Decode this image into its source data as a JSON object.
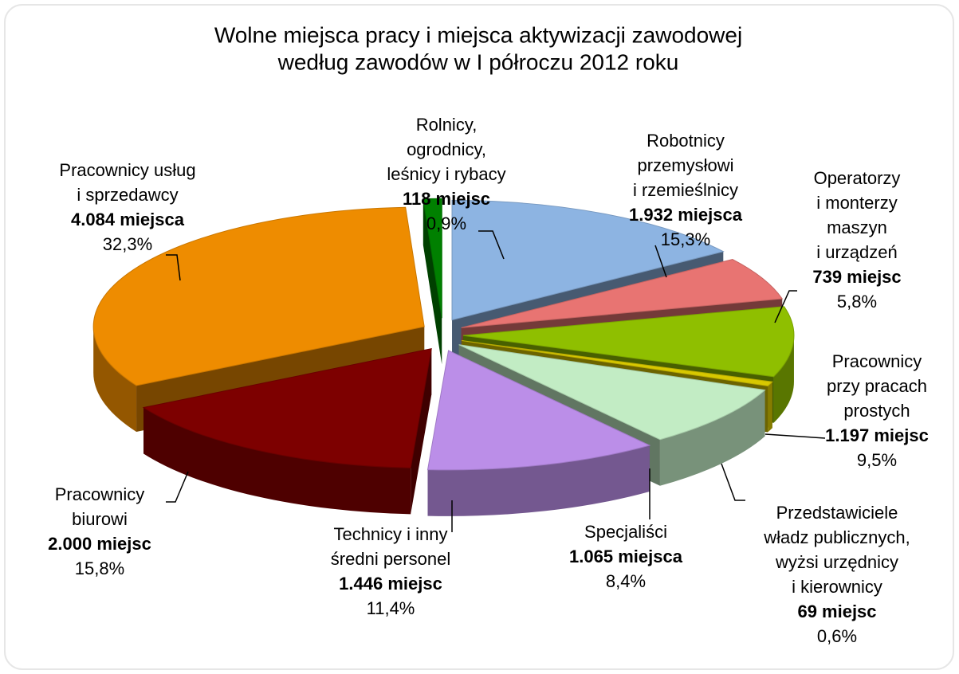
{
  "chart_data": {
    "type": "pie3d",
    "title": [
      "Wolne miejsca pracy i miejsca aktywizacji zawodowej",
      "według zawodów w I półroczu 2012 roku"
    ],
    "categories": [
      [
        "Robotnicy",
        "przemysłowi",
        "i rzemieślnicy"
      ],
      [
        "Operatorzy",
        "i monterzy",
        "maszyn",
        "i urządzeń"
      ],
      [
        "Pracownicy",
        "przy pracach",
        "prostych"
      ],
      [
        "Przedstawiciele",
        "władz publicznych,",
        "wyżsi urzędnicy",
        "i kierownicy"
      ],
      [
        "Specjaliści"
      ],
      [
        "Technicy i inny",
        "średni personel"
      ],
      [
        "Pracownicy",
        "biurowi"
      ],
      [
        "Pracownicy usług",
        "i sprzedawcy"
      ],
      [
        "Rolnicy,",
        "ogrodnicy,",
        "leśnicy i rybacy"
      ]
    ],
    "values": [
      15.3,
      5.8,
      9.5,
      0.6,
      8.4,
      11.4,
      15.8,
      32.3,
      0.9
    ],
    "value_labels": [
      "15,3%",
      "5,8%",
      "9,5%",
      "0,6%",
      "8,4%",
      "11,4%",
      "15,8%",
      "32,3%",
      "0,9%"
    ],
    "counts": [
      1932,
      739,
      1197,
      69,
      1065,
      1446,
      2000,
      4084,
      118
    ],
    "count_labels": [
      "1.932 miejsca",
      "739 miejsc",
      "1.197 miejsc",
      "69 miejsc",
      "1.065 miejsca",
      "1.446 miejsc",
      "2.000 miejsc",
      "4.084 miejsca",
      "118 miejsc"
    ],
    "colors": [
      "#8db4e2",
      "#e87472",
      "#8fbf00",
      "#d8c800",
      "#c2ecc4",
      "#bb8ee8",
      "#7d0000",
      "#ee8c00",
      "#008000"
    ]
  }
}
